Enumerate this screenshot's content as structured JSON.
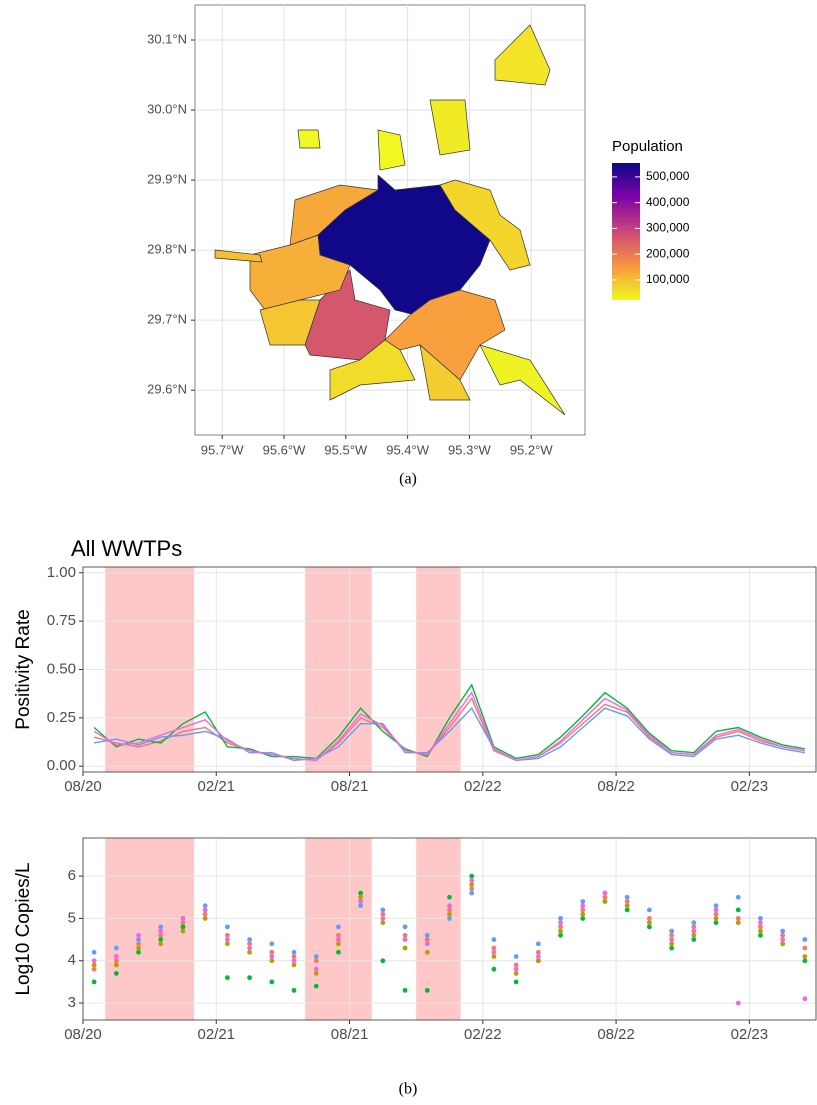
{
  "chart_data": [
    {
      "type": "map",
      "xlim": [
        -95.744,
        -95.113
      ],
      "ylim": [
        29.536,
        30.15
      ],
      "xticks": [
        {
          "value": -95.7,
          "label": "95.7°W"
        },
        {
          "value": -95.6,
          "label": "95.6°W"
        },
        {
          "value": -95.5,
          "label": "95.5°W"
        },
        {
          "value": -95.4,
          "label": "95.4°W"
        },
        {
          "value": -95.3,
          "label": "95.3°W"
        },
        {
          "value": -95.2,
          "label": "95.2°W"
        }
      ],
      "yticks": [
        {
          "value": 29.6,
          "label": "29.6°N"
        },
        {
          "value": 29.7,
          "label": "29.7°N"
        },
        {
          "value": 29.8,
          "label": "29.8°N"
        },
        {
          "value": 29.9,
          "label": "29.9°N"
        },
        {
          "value": 30.0,
          "label": "30.0°N"
        },
        {
          "value": 30.1,
          "label": "30.1°N"
        }
      ],
      "grid": true,
      "values": [
        550000,
        260000,
        140000,
        120000,
        130000,
        90000,
        60000,
        70000,
        40000,
        50000,
        20000,
        100000,
        30000,
        80000,
        25000
      ],
      "colorbar": {
        "title": "Population",
        "lim": [
          22000,
          554000
        ],
        "ticks": [
          {
            "value": 100000,
            "label": "100,000"
          },
          {
            "value": 200000,
            "label": "200,000"
          },
          {
            "value": 300000,
            "label": "300,000"
          },
          {
            "value": 400000,
            "label": "400,000"
          },
          {
            "value": 500000,
            "label": "500,000"
          }
        ],
        "colors": [
          "#f0f921",
          "#f89540",
          "#cc4778",
          "#7e03a8",
          "#0d0887"
        ]
      }
    },
    {
      "type": "line",
      "title": "All WWTPs",
      "y_label": "Positivity Rate",
      "x": [
        "2020-08",
        "2020-09",
        "2020-10",
        "2020-11",
        "2020-12",
        "2021-01",
        "2021-02",
        "2021-03",
        "2021-04",
        "2021-05",
        "2021-06",
        "2021-07",
        "2021-08",
        "2021-09",
        "2021-10",
        "2021-11",
        "2021-12",
        "2022-01",
        "2022-02",
        "2022-03",
        "2022-04",
        "2022-05",
        "2022-06",
        "2022-07",
        "2022-08",
        "2022-09",
        "2022-10",
        "2022-11",
        "2022-12",
        "2023-01",
        "2023-02",
        "2023-03",
        "2023-04"
      ],
      "xlim": [
        "2020-08",
        "2023-05"
      ],
      "xticks": [
        {
          "value": "2020-08",
          "label": "08/20"
        },
        {
          "value": "2021-02",
          "label": "02/21"
        },
        {
          "value": "2021-08",
          "label": "08/21"
        },
        {
          "value": "2022-02",
          "label": "02/22"
        },
        {
          "value": "2022-08",
          "label": "08/22"
        },
        {
          "value": "2023-02",
          "label": "02/23"
        }
      ],
      "ylim": [
        -0.03,
        1.03
      ],
      "yticks": [
        {
          "value": 0,
          "label": "0.00"
        },
        {
          "value": 0.25,
          "label": "0.25"
        },
        {
          "value": 0.5,
          "label": "0.50"
        },
        {
          "value": 0.75,
          "label": "0.75"
        },
        {
          "value": 1,
          "label": "1.00"
        }
      ],
      "grid": true,
      "shaded_periods": [
        [
          "2020-09",
          "2020-12"
        ],
        [
          "2021-06",
          "2021-08"
        ],
        [
          "2021-11",
          "2021-12"
        ]
      ],
      "shade_color": "#ffc8c8",
      "series": [
        {
          "color": "#f8766d",
          "values": [
            0.15,
            0.12,
            0.1,
            0.13,
            0.18,
            0.2,
            0.12,
            0.08,
            0.06,
            0.04,
            0.03,
            0.12,
            0.25,
            0.2,
            0.08,
            0.06,
            0.2,
            0.35,
            0.08,
            0.03,
            0.05,
            0.12,
            0.22,
            0.32,
            0.28,
            0.15,
            0.07,
            0.06,
            0.15,
            0.18,
            0.13,
            0.1,
            0.08
          ]
        },
        {
          "color": "#00ba38",
          "values": [
            0.2,
            0.1,
            0.14,
            0.12,
            0.22,
            0.28,
            0.1,
            0.09,
            0.05,
            0.05,
            0.04,
            0.15,
            0.3,
            0.18,
            0.09,
            0.05,
            0.25,
            0.42,
            0.1,
            0.04,
            0.06,
            0.15,
            0.26,
            0.38,
            0.3,
            0.17,
            0.08,
            0.07,
            0.18,
            0.2,
            0.15,
            0.11,
            0.09
          ]
        },
        {
          "color": "#619cff",
          "values": [
            0.12,
            0.14,
            0.11,
            0.15,
            0.16,
            0.18,
            0.14,
            0.07,
            0.07,
            0.03,
            0.04,
            0.1,
            0.22,
            0.22,
            0.07,
            0.07,
            0.18,
            0.3,
            0.09,
            0.03,
            0.04,
            0.1,
            0.2,
            0.3,
            0.26,
            0.14,
            0.06,
            0.05,
            0.14,
            0.16,
            0.12,
            0.09,
            0.07
          ]
        },
        {
          "color": "#f564e3",
          "values": [
            0.18,
            0.11,
            0.12,
            0.16,
            0.2,
            0.24,
            0.13,
            0.08,
            0.06,
            0.04,
            0.03,
            0.13,
            0.27,
            0.21,
            0.08,
            0.06,
            0.22,
            0.38,
            0.09,
            0.03,
            0.05,
            0.13,
            0.24,
            0.35,
            0.29,
            0.16,
            0.07,
            0.06,
            0.16,
            0.19,
            0.14,
            0.1,
            0.08
          ]
        }
      ]
    },
    {
      "type": "scatter",
      "y_label": "Log10 Copies/L",
      "x": [
        "2020-08",
        "2020-09",
        "2020-10",
        "2020-11",
        "2020-12",
        "2021-01",
        "2021-02",
        "2021-03",
        "2021-04",
        "2021-05",
        "2021-06",
        "2021-07",
        "2021-08",
        "2021-09",
        "2021-10",
        "2021-11",
        "2021-12",
        "2022-01",
        "2022-02",
        "2022-03",
        "2022-04",
        "2022-05",
        "2022-06",
        "2022-07",
        "2022-08",
        "2022-09",
        "2022-10",
        "2022-11",
        "2022-12",
        "2023-01",
        "2023-02",
        "2023-03",
        "2023-04"
      ],
      "xlim": [
        "2020-08",
        "2023-05"
      ],
      "xticks": [
        {
          "value": "2020-08",
          "label": "08/20"
        },
        {
          "value": "2021-02",
          "label": "02/21"
        },
        {
          "value": "2021-08",
          "label": "08/21"
        },
        {
          "value": "2022-02",
          "label": "02/22"
        },
        {
          "value": "2022-08",
          "label": "08/22"
        },
        {
          "value": "2023-02",
          "label": "02/23"
        }
      ],
      "ylim": [
        2.6,
        6.9
      ],
      "yticks": [
        3,
        4,
        5,
        6
      ],
      "grid": true,
      "shaded_periods": [
        [
          "2020-09",
          "2020-12"
        ],
        [
          "2021-06",
          "2021-08"
        ],
        [
          "2021-11",
          "2021-12"
        ]
      ],
      "shade_color": "#ffc8c8",
      "series": [
        {
          "color": "#f8766d",
          "values": [
            3.8,
            4.0,
            4.4,
            4.6,
            4.9,
            5.1,
            4.6,
            4.4,
            4.2,
            4.1,
            4.0,
            4.6,
            5.4,
            5.1,
            4.6,
            4.5,
            5.2,
            5.7,
            4.3,
            3.9,
            4.2,
            4.8,
            5.2,
            5.5,
            5.4,
            5.0,
            4.6,
            4.8,
            5.1,
            5.0,
            4.8,
            4.6,
            4.3
          ]
        },
        {
          "color": "#00ba38",
          "values": [
            3.5,
            3.7,
            4.2,
            4.5,
            4.8,
            5.2,
            3.6,
            3.6,
            3.5,
            3.3,
            3.4,
            4.2,
            5.6,
            4.0,
            3.3,
            3.3,
            5.5,
            6.0,
            3.8,
            3.5,
            4.0,
            4.6,
            5.0,
            5.4,
            5.2,
            4.8,
            4.3,
            4.5,
            4.9,
            5.2,
            4.6,
            4.4,
            4.0
          ]
        },
        {
          "color": "#619cff",
          "values": [
            4.2,
            4.3,
            4.5,
            4.8,
            5.0,
            5.3,
            4.8,
            4.5,
            4.4,
            4.2,
            4.1,
            4.8,
            5.3,
            5.2,
            4.8,
            4.6,
            5.0,
            5.6,
            4.5,
            4.1,
            4.4,
            5.0,
            5.4,
            5.6,
            5.5,
            5.2,
            4.7,
            4.9,
            5.3,
            5.5,
            5.0,
            4.7,
            4.5
          ]
        },
        {
          "color": "#f564e3",
          "values": [
            4.0,
            4.1,
            4.6,
            4.7,
            5.0,
            5.2,
            4.5,
            4.3,
            4.1,
            4.0,
            3.8,
            4.5,
            5.4,
            5.0,
            4.5,
            4.4,
            5.3,
            5.9,
            4.2,
            3.8,
            4.1,
            4.9,
            5.3,
            5.6,
            5.3,
            4.9,
            4.5,
            4.7,
            5.2,
            3.0,
            4.9,
            4.5,
            3.1
          ]
        },
        {
          "color": "#b79f00",
          "values": [
            3.9,
            3.9,
            4.3,
            4.4,
            4.7,
            5.0,
            4.4,
            4.2,
            4.0,
            3.9,
            3.7,
            4.4,
            5.5,
            4.9,
            4.3,
            4.2,
            5.1,
            5.8,
            4.1,
            3.7,
            4.0,
            4.7,
            5.1,
            5.4,
            5.3,
            4.9,
            4.4,
            4.6,
            5.0,
            4.9,
            4.7,
            4.4,
            4.1
          ]
        }
      ]
    }
  ],
  "captions": [
    "(a)",
    "(b)"
  ]
}
